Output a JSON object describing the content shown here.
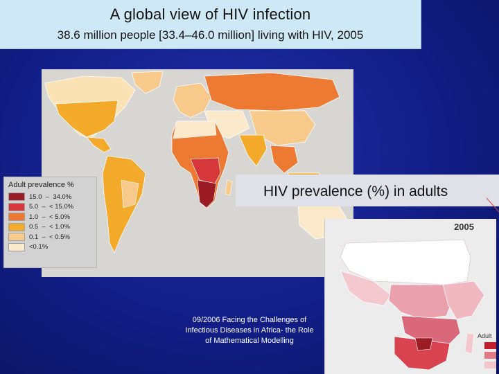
{
  "header": {
    "title": "A global view of HIV infection",
    "subtitle": "38.6 million people [33.4–46.0 million] living with HIV, 2005"
  },
  "legend": {
    "title": "Adult prevalence %",
    "items": [
      {
        "label": "15.0  –  34.0%",
        "color": "#9b1c24"
      },
      {
        "label": "5.0  –  < 15.0%",
        "color": "#d5373a"
      },
      {
        "label": "1.0  –  < 5.0%",
        "color": "#ec7a33"
      },
      {
        "label": "0.5  –  < 1.0%",
        "color": "#f3a92a"
      },
      {
        "label": "0.1  –  < 0.5%",
        "color": "#f7c98a"
      },
      {
        "label": "<0.1%",
        "color": "#fbe9cc"
      }
    ]
  },
  "caption": {
    "text": "HIV prevalence (%) in adults"
  },
  "africa": {
    "year": "2005",
    "legend_label": "Adult"
  },
  "footer": {
    "line1": "09/2006 Facing the Challenges of",
    "line2": "Infectious Diseases in Africa- the Role",
    "line3": "of Mathematical Modelling"
  }
}
